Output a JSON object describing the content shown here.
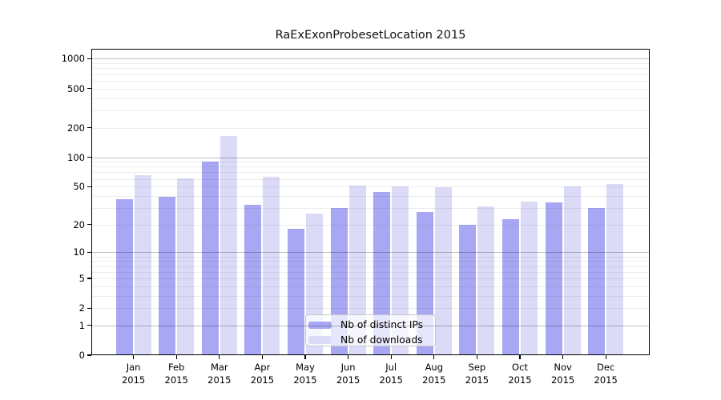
{
  "chart_data": {
    "type": "bar",
    "title": "RaExExonProbesetLocation 2015",
    "year_label": "2015",
    "categories": [
      "Jan",
      "Feb",
      "Mar",
      "Apr",
      "May",
      "Jun",
      "Jul",
      "Aug",
      "Sep",
      "Oct",
      "Nov",
      "Dec"
    ],
    "series": [
      {
        "name": "Nb of distinct IPs",
        "color": "#a7a7f3",
        "values": [
          37,
          39,
          90,
          32,
          18,
          30,
          44,
          27,
          20,
          23,
          34,
          30
        ]
      },
      {
        "name": "Nb of downloads",
        "color": "#dbdbf8",
        "values": [
          65,
          61,
          165,
          63,
          26,
          51,
          50,
          49,
          31,
          35,
          50,
          53
        ]
      }
    ],
    "yscale": "log1p",
    "y_ticks": [
      0,
      1,
      2,
      5,
      10,
      20,
      50,
      100,
      200,
      500,
      1000
    ],
    "ylim": [
      0,
      1260
    ],
    "grid": {
      "horizontal": true,
      "minor_lines": true,
      "drawn_over_bars": true
    },
    "legend_position": "lower center"
  },
  "colors": {
    "background": "#ffffff",
    "axis": "#000000",
    "major_grid": "rgba(0,0,0,0.25)",
    "minor_grid": "rgba(0,0,0,0.07)"
  }
}
